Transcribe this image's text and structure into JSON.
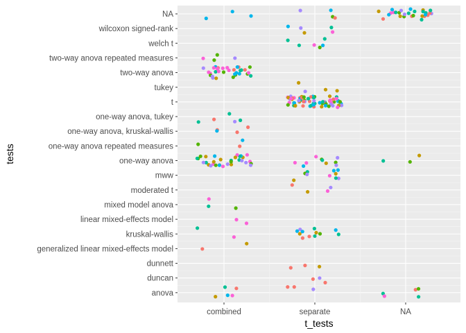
{
  "chart_data": {
    "type": "scatter",
    "subtype": "jitter",
    "xlabel": "t_tests",
    "ylabel": "tests",
    "x_categories": [
      "combined",
      "separate",
      "NA"
    ],
    "y_categories": [
      "NA",
      "wilcoxon signed-rank",
      "welch t",
      "two-way anova repeated measures",
      "two-way anova",
      "tukey",
      "t",
      "one-way anova, tukey",
      "one-way anova, kruskal-wallis",
      "one-way anova repeated measures",
      "one-way anova",
      "mww",
      "moderated t",
      "mixed model anova",
      "linear mixed-effects model",
      "kruskal-wallis",
      "generalized linear mixed-effects model",
      "dunnett",
      "duncan",
      "anova"
    ],
    "colors": [
      "#F8766D",
      "#C49A00",
      "#53B400",
      "#00C094",
      "#00B6EB",
      "#A58AFF",
      "#FB61D7"
    ],
    "grid": true,
    "legend": "none",
    "panel_background": "#EBEBEB",
    "points": [
      {
        "x": "combined",
        "y": "NA",
        "count": 3
      },
      {
        "x": "separate",
        "y": "NA",
        "count": 4
      },
      {
        "x": "NA",
        "y": "NA",
        "count": 28
      },
      {
        "x": "separate",
        "y": "wilcoxon signed-rank",
        "count": 5
      },
      {
        "x": "separate",
        "y": "welch t",
        "count": 6
      },
      {
        "x": "combined",
        "y": "two-way anova repeated measures",
        "count": 4
      },
      {
        "x": "combined",
        "y": "two-way anova",
        "count": 32
      },
      {
        "x": "separate",
        "y": "tukey",
        "count": 4
      },
      {
        "x": "separate",
        "y": "t",
        "count": 70
      },
      {
        "x": "combined",
        "y": "one-way anova, tukey",
        "count": 5
      },
      {
        "x": "combined",
        "y": "one-way anova, kruskal-wallis",
        "count": 4
      },
      {
        "x": "combined",
        "y": "one-way anova repeated measures",
        "count": 3
      },
      {
        "x": "combined",
        "y": "one-way anova",
        "count": 32
      },
      {
        "x": "separate",
        "y": "one-way anova",
        "count": 10
      },
      {
        "x": "NA",
        "y": "one-way anova",
        "count": 3
      },
      {
        "x": "separate",
        "y": "mww",
        "count": 10
      },
      {
        "x": "separate",
        "y": "moderated t",
        "count": 4
      },
      {
        "x": "combined",
        "y": "mixed model anova",
        "count": 3
      },
      {
        "x": "combined",
        "y": "linear mixed-effects model",
        "count": 2
      },
      {
        "x": "combined",
        "y": "kruskal-wallis",
        "count": 2
      },
      {
        "x": "separate",
        "y": "kruskal-wallis",
        "count": 12
      },
      {
        "x": "combined",
        "y": "generalized linear mixed-effects model",
        "count": 2
      },
      {
        "x": "separate",
        "y": "dunnett",
        "count": 3
      },
      {
        "x": "separate",
        "y": "duncan",
        "count": 3
      },
      {
        "x": "combined",
        "y": "anova",
        "count": 5
      },
      {
        "x": "separate",
        "y": "anova",
        "count": 3
      },
      {
        "x": "NA",
        "y": "anova",
        "count": 5
      }
    ]
  }
}
